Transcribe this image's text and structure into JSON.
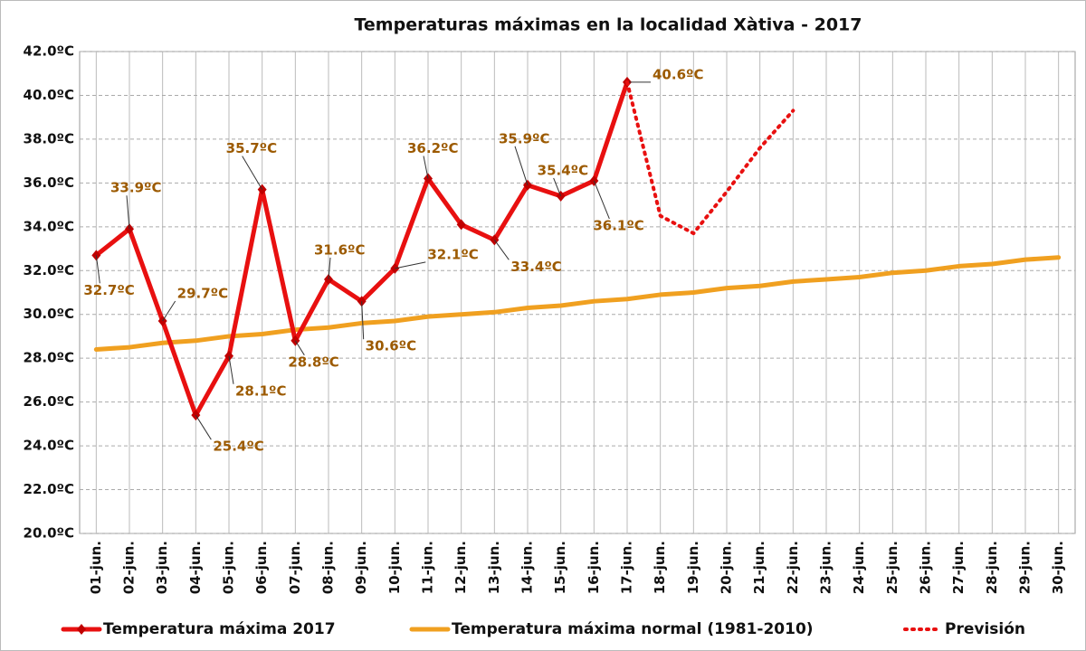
{
  "chart_data": {
    "type": "line",
    "title": "Temperaturas máximas en la localidad Xàtiva - 2017",
    "categories": [
      "01-jun.",
      "02-jun.",
      "03-jun.",
      "04-jun.",
      "05-jun.",
      "06-jun.",
      "07-jun.",
      "08-jun.",
      "09-jun.",
      "10-jun.",
      "11-jun.",
      "12-jun.",
      "13-jun.",
      "14-jun.",
      "15-jun.",
      "16-jun.",
      "17-jun.",
      "18-jun.",
      "19-jun.",
      "20-jun.",
      "21-jun.",
      "22-jun.",
      "23-jun.",
      "24-jun.",
      "25-jun.",
      "26-jun.",
      "27-jun.",
      "28-jun.",
      "29-jun.",
      "30-jun."
    ],
    "series": [
      {
        "name": "Temperatura máxima 2017",
        "color": "#e81010",
        "style": "solid-markers",
        "values": [
          32.7,
          33.9,
          29.7,
          25.4,
          28.1,
          35.7,
          28.8,
          31.6,
          30.6,
          32.1,
          36.2,
          34.1,
          33.4,
          35.9,
          35.4,
          36.1,
          40.6,
          null,
          null,
          null,
          null,
          null,
          null,
          null,
          null,
          null,
          null,
          null,
          null,
          null
        ],
        "value_labels": [
          "32.7ºC",
          "33.9ºC",
          "29.7ºC",
          "25.4ºC",
          "28.1ºC",
          "35.7ºC",
          "28.8ºC",
          "31.6ºC",
          "30.6ºC",
          "32.1ºC",
          "36.2ºC",
          null,
          "33.4ºC",
          "35.9ºC",
          "35.4ºC",
          "36.1ºC",
          "40.6ºC",
          null,
          null,
          null,
          null,
          null,
          null,
          null,
          null,
          null,
          null,
          null,
          null,
          null
        ]
      },
      {
        "name": "Temperatura máxima normal (1981-2010)",
        "color": "#f0a020",
        "style": "solid",
        "values": [
          28.4,
          28.5,
          28.7,
          28.8,
          29.0,
          29.1,
          29.3,
          29.4,
          29.6,
          29.7,
          29.9,
          30.0,
          30.1,
          30.3,
          30.4,
          30.6,
          30.7,
          30.9,
          31.0,
          31.2,
          31.3,
          31.5,
          31.6,
          31.7,
          31.9,
          32.0,
          32.2,
          32.3,
          32.5,
          32.6
        ]
      },
      {
        "name": "Previsión",
        "color": "#e81010",
        "style": "dotted",
        "values": [
          null,
          null,
          null,
          null,
          null,
          null,
          null,
          null,
          null,
          null,
          null,
          null,
          null,
          null,
          null,
          null,
          40.6,
          34.5,
          33.7,
          35.6,
          37.6,
          39.3,
          null,
          null,
          null,
          null,
          null,
          null,
          null,
          null
        ]
      }
    ],
    "ylim": [
      20,
      42
    ],
    "yticks": [
      {
        "value": 20,
        "label": "20.0ºC"
      },
      {
        "value": 22,
        "label": "22.0ºC"
      },
      {
        "value": 24,
        "label": "24.0ºC"
      },
      {
        "value": 26,
        "label": "26.0ºC"
      },
      {
        "value": 28,
        "label": "28.0ºC"
      },
      {
        "value": 30,
        "label": "30.0ºC"
      },
      {
        "value": 32,
        "label": "32.0ºC"
      },
      {
        "value": 34,
        "label": "34.0ºC"
      },
      {
        "value": 36,
        "label": "36.0ºC"
      },
      {
        "value": 38,
        "label": "38.0ºC"
      },
      {
        "value": 40,
        "label": "40.0ºC"
      },
      {
        "value": 42,
        "label": "42.0ºC"
      }
    ],
    "grid": true,
    "legend": "bottom"
  }
}
